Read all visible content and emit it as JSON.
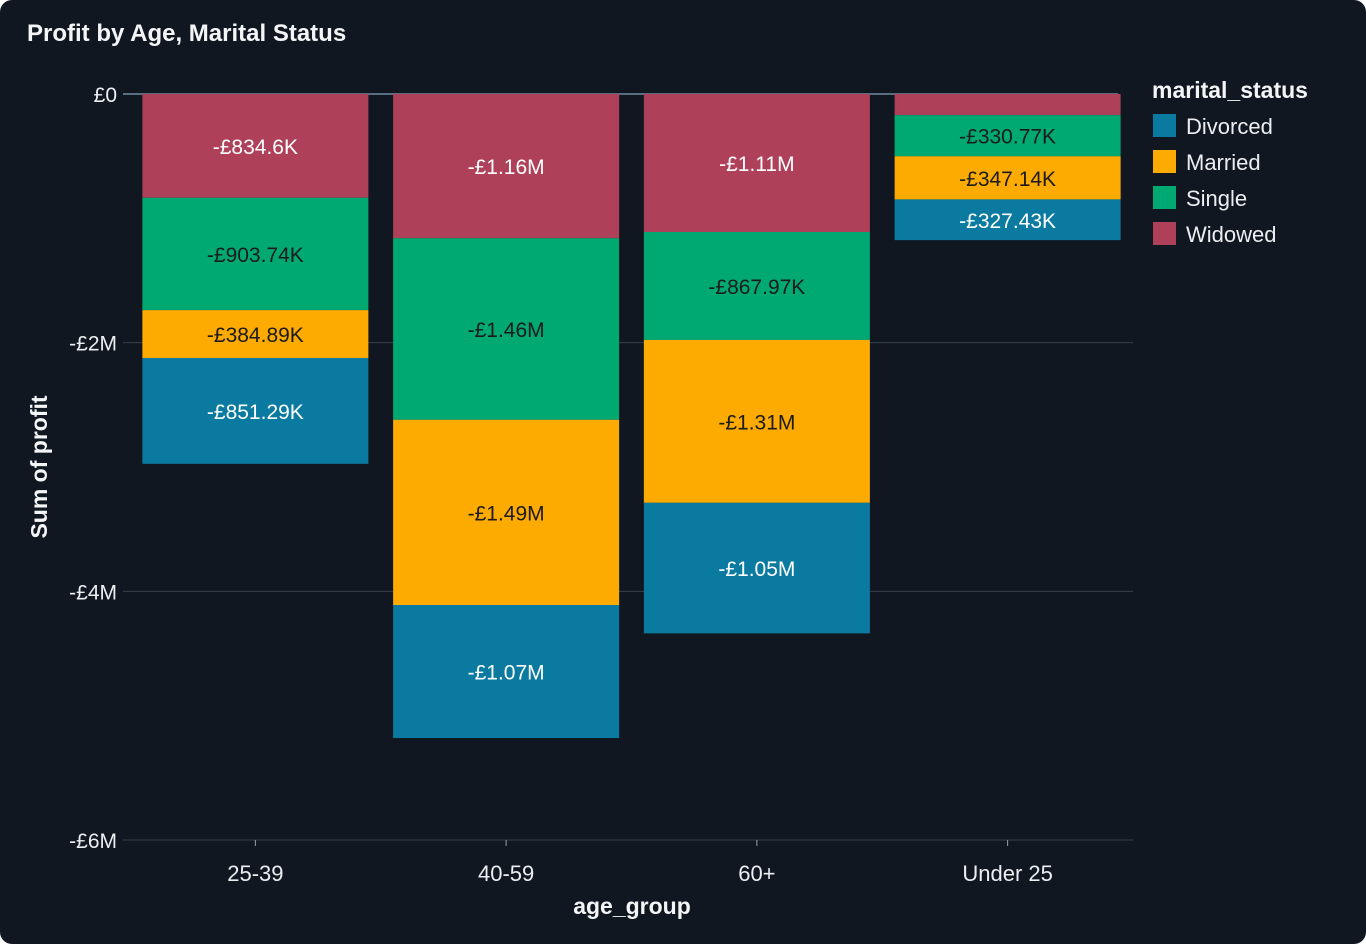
{
  "chart_data": {
    "type": "bar",
    "stacked": true,
    "title": "Profit by Age, Marital Status",
    "xlabel": "age_group",
    "ylabel": "Sum of profit",
    "categories": [
      "25-39",
      "40-59",
      "60+",
      "Under 25"
    ],
    "ylim": [
      -6000000,
      0
    ],
    "yticks": [
      {
        "value": 0,
        "label": "£0"
      },
      {
        "value": -2000000,
        "label": "-£2M"
      },
      {
        "value": -4000000,
        "label": "-£4M"
      },
      {
        "value": -6000000,
        "label": "-£6M"
      }
    ],
    "grid": true,
    "legend_title": "marital_status",
    "legend_position": "top-right",
    "stack_order": [
      "Widowed",
      "Single",
      "Married",
      "Divorced"
    ],
    "series": [
      {
        "name": "Divorced",
        "color": "#0a7aa1",
        "values": [
          -851290,
          -1070000,
          -1050000,
          -327430
        ],
        "labels": [
          "-£851.29K",
          "-£1.07M",
          "-£1.05M",
          "-£327.43K"
        ]
      },
      {
        "name": "Married",
        "color": "#fdab00",
        "values": [
          -384890,
          -1490000,
          -1310000,
          -347140
        ],
        "labels": [
          "-£384.89K",
          "-£1.49M",
          "-£1.31M",
          "-£347.14K"
        ]
      },
      {
        "name": "Single",
        "color": "#00a972",
        "values": [
          -903740,
          -1460000,
          -867970,
          -330770
        ],
        "labels": [
          "-£903.74K",
          "-£1.46M",
          "-£867.97K",
          "-£330.77K"
        ]
      },
      {
        "name": "Widowed",
        "color": "#ae4159",
        "values": [
          -834600,
          -1160000,
          -1110000,
          -170000
        ],
        "labels": [
          "-£834.6K",
          "-£1.16M",
          "-£1.11M",
          ""
        ]
      }
    ]
  }
}
